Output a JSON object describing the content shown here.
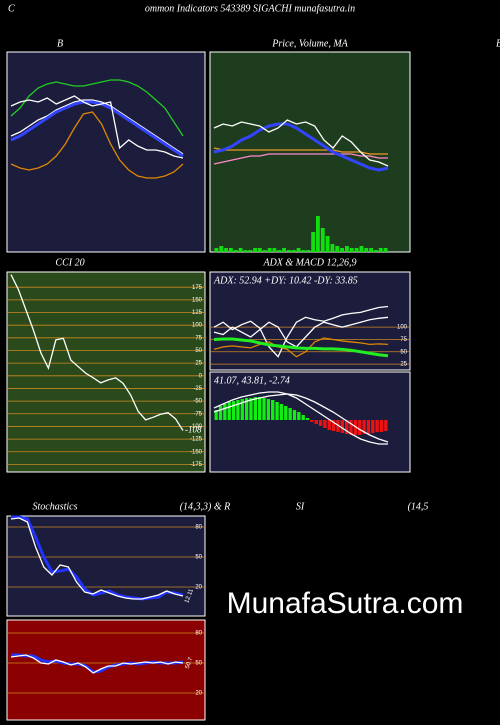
{
  "header": {
    "left": "C",
    "title": "ommon  Indicators 543389 SIGACHI munafasutra.in",
    "right": "B"
  },
  "watermark": "MunafaSutra.com",
  "chart_data": [
    {
      "type": "line",
      "title": "B",
      "background": "#1c1c3c",
      "ylim": [
        0,
        100
      ],
      "series": [
        {
          "color": "#22cc22",
          "values": [
            68,
            72,
            78,
            82,
            84,
            85,
            84,
            83,
            83,
            84,
            85,
            86,
            86,
            85,
            83,
            80,
            76,
            72,
            65,
            58
          ]
        },
        {
          "color": "#ffffff",
          "values": [
            58,
            60,
            63,
            66,
            68,
            71,
            73,
            75,
            76,
            76,
            75,
            73,
            70,
            67,
            64,
            61,
            58,
            55,
            52,
            49
          ]
        },
        {
          "color": "#3344ff",
          "values": [
            56,
            58,
            61,
            64,
            67,
            70,
            72,
            74,
            75,
            75,
            74,
            72,
            69,
            66,
            63,
            60,
            57,
            54,
            51,
            48
          ]
        },
        {
          "color": "#dd8800",
          "values": [
            44,
            42,
            41,
            42,
            44,
            48,
            54,
            62,
            69,
            70,
            64,
            54,
            46,
            41,
            38,
            37,
            37,
            38,
            40,
            44
          ]
        },
        {
          "color": "#ffffff",
          "values": [
            73,
            75,
            76,
            75,
            77,
            74,
            76,
            78,
            75,
            73,
            74,
            75,
            52,
            56,
            53,
            51,
            51,
            50,
            48,
            47
          ]
        }
      ]
    },
    {
      "type": "line",
      "title": "Price, Volume, MA",
      "background": "#1e3d1e",
      "ylim": [
        0,
        100
      ],
      "series": [
        {
          "type": "bar",
          "color": "#11dd11",
          "values": [
            2,
            3,
            2,
            2,
            1,
            2,
            1,
            1,
            2,
            2,
            1,
            2,
            2,
            1,
            2,
            1,
            1,
            2,
            1,
            1,
            10,
            18,
            12,
            8,
            4,
            3,
            2,
            3,
            2,
            2,
            3,
            2,
            2,
            1,
            2,
            2
          ]
        },
        {
          "color": "#ee9922",
          "values": [
            52,
            51,
            51,
            51,
            51,
            51,
            51,
            51,
            51,
            51,
            51,
            51,
            51,
            51,
            50,
            50,
            50,
            49,
            49,
            49
          ]
        },
        {
          "color": "#ff88cc",
          "values": [
            44,
            45,
            46,
            47,
            48,
            48,
            49,
            49,
            49,
            49,
            49,
            49,
            49,
            49,
            49,
            49,
            48,
            48,
            47,
            47
          ]
        },
        {
          "color": "#3344ff",
          "values": [
            50,
            51,
            53,
            56,
            58,
            61,
            63,
            64,
            64,
            62,
            59,
            56,
            53,
            50,
            48,
            46,
            44,
            42,
            41,
            42
          ]
        },
        {
          "color": "#ffffff",
          "values": [
            62,
            64,
            63,
            65,
            64,
            63,
            60,
            62,
            66,
            64,
            65,
            63,
            56,
            52,
            58,
            55,
            50,
            46,
            45,
            43
          ]
        }
      ]
    },
    {
      "type": "line",
      "title": "CCI 20",
      "background": "#2b4a1b",
      "grid_color": "#cc8822",
      "grid": true,
      "ylim": [
        -190,
        205
      ],
      "yticks": [
        175,
        150,
        125,
        100,
        75,
        50,
        25,
        0,
        -25,
        -50,
        -75,
        -100,
        -125,
        -150,
        -175
      ],
      "end_label": true,
      "series": [
        {
          "color": "#ffffff",
          "values": [
            200,
            170,
            130,
            90,
            45,
            15,
            71,
            74,
            31,
            18,
            5,
            -4,
            -14,
            -8,
            -4,
            -15,
            -38,
            -70,
            -87,
            -82,
            -76,
            -73,
            -85,
            -108
          ]
        }
      ]
    },
    {
      "type": "line",
      "title": "ADX  & MACD 12,26,9",
      "label": "ADX: 52.94  +DY: 10.42  -DY: 33.85",
      "background": "#1c1c3c",
      "grid_color": "#cc8822",
      "grid": true,
      "ylim": [
        13,
        212
      ],
      "yticks": [
        100,
        75,
        50,
        25
      ],
      "series": [
        {
          "color": "#ffffff",
          "values": [
            100,
            110,
            95,
            105,
            112,
            98,
            60,
            40,
            80,
            110,
            120,
            115,
            112,
            118,
            125,
            128,
            130,
            135,
            140,
            142
          ]
        },
        {
          "color": "#ffffff",
          "values": [
            90,
            85,
            100,
            90,
            80,
            95,
            110,
            100,
            70,
            60,
            80,
            100,
            110,
            105,
            100,
            105,
            110,
            115,
            118,
            120
          ]
        },
        {
          "color": "#dd8800",
          "values": [
            55,
            60,
            62,
            60,
            58,
            65,
            70,
            60,
            55,
            40,
            50,
            70,
            78,
            75,
            72,
            70,
            68,
            65,
            66,
            65
          ]
        },
        {
          "color": "#22ee22",
          "values": [
            75,
            76,
            76,
            74,
            72,
            68,
            64,
            62,
            60,
            58,
            57,
            57,
            56,
            56,
            55,
            53,
            50,
            47,
            44,
            42
          ]
        }
      ]
    },
    {
      "type": "line",
      "label": "41.07,  43.81,  -2.74",
      "background": "#1c1c3c",
      "ylim": [
        -52,
        48
      ],
      "series": [
        {
          "type": "bar",
          "pos_color": "#11ee11",
          "neg_color": "#ee1111",
          "values": [
            10,
            14,
            16,
            18,
            19,
            20,
            21,
            22,
            22,
            23,
            23,
            22,
            21,
            20,
            18,
            16,
            14,
            12,
            10,
            8,
            5,
            2,
            -2,
            -4,
            -6,
            -8,
            -10,
            -11,
            -12,
            -13,
            -14,
            -15,
            -15,
            -15,
            -14,
            -14,
            -13,
            -12,
            -12,
            -11
          ]
        },
        {
          "color": "#ffffff",
          "values": [
            8,
            11,
            14,
            17,
            20,
            22,
            24,
            25,
            26,
            25,
            22,
            18,
            13,
            8,
            2,
            -4,
            -10,
            -15,
            -19,
            -22
          ]
        },
        {
          "color": "#ffffff",
          "values": [
            12,
            16,
            20,
            23,
            25,
            27,
            28,
            28,
            26,
            22,
            16,
            10,
            4,
            -2,
            -8,
            -14,
            -19,
            -22,
            -24,
            -24
          ]
        }
      ]
    },
    {
      "type": "line",
      "title": "Stochastics",
      "subtitle": "(14,3,3) & R",
      "background": "#1c1c3c",
      "grid_color": "#cc8822",
      "grid": true,
      "ylim": [
        -9,
        91
      ],
      "yticks": [
        80,
        50,
        20
      ],
      "end_text": "12.11",
      "series": [
        {
          "color": "#2233ff",
          "values": [
            90,
            90,
            88,
            70,
            50,
            35,
            36,
            38,
            30,
            18,
            12,
            14,
            16,
            12,
            10,
            9,
            8,
            9,
            10,
            15,
            14,
            12
          ]
        },
        {
          "color": "#ffffff",
          "values": [
            88,
            89,
            85,
            60,
            40,
            32,
            42,
            40,
            25,
            15,
            13,
            17,
            14,
            11,
            9,
            8,
            8,
            10,
            12,
            16,
            13,
            11
          ]
        }
      ]
    },
    {
      "type": "line",
      "title": "SI",
      "subtitle": "(14,5",
      "background": "#8b0000",
      "grid_color": "#cc8822",
      "grid": true,
      "ylim": [
        -7,
        93
      ],
      "yticks": [
        80,
        50,
        20
      ],
      "end_text": "50.7",
      "series": [
        {
          "color": "#2233ff",
          "values": [
            58,
            58,
            57,
            57,
            53,
            51,
            52,
            50,
            49,
            49,
            47,
            41,
            42,
            46,
            48,
            49,
            50,
            49,
            50,
            51,
            50,
            50,
            50,
            51
          ]
        },
        {
          "color": "#ffffff",
          "values": [
            56,
            57,
            58,
            55,
            50,
            49,
            53,
            51,
            48,
            50,
            46,
            40,
            44,
            47,
            47,
            50,
            49,
            50,
            51,
            50,
            51,
            49,
            51,
            50
          ]
        }
      ]
    }
  ]
}
